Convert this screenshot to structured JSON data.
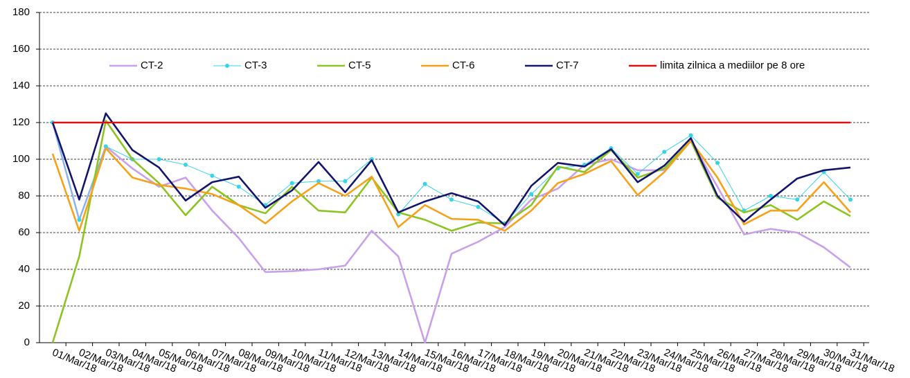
{
  "chart_data": {
    "type": "line",
    "categories": [
      "01/Mar/18",
      "02/Mar/18",
      "03/Mar/18",
      "04/Mar/18",
      "05/Mar/18",
      "06/Mar/18",
      "07/Mar/18",
      "08/Mar/18",
      "09/Mar/18",
      "10/Mar/18",
      "11/Mar/18",
      "12/Mar/18",
      "13/Mar/18",
      "14/Mar/18",
      "15/Mar/18",
      "16/Mar/18",
      "17/Mar/18",
      "18/Mar/18",
      "19/Mar/18",
      "20/Mar/18",
      "21/Mar/18",
      "22/Mar/18",
      "23/Mar/18",
      "24/Mar/18",
      "25/Mar/18",
      "26/Mar/18",
      "27/Mar/18",
      "28/Mar/18",
      "29/Mar/18",
      "30/Mar/18",
      "31/Mar/18"
    ],
    "series": [
      {
        "name": "CT-2",
        "color": "#c9a0ec",
        "marker": false,
        "values": [
          120,
          67,
          107,
          95,
          85,
          90,
          72,
          57,
          38.5,
          39,
          40,
          42,
          61,
          47,
          0,
          48.5,
          55,
          63,
          78,
          84,
          97,
          100,
          94,
          94,
          110,
          85,
          59,
          62,
          60,
          52,
          41
        ]
      },
      {
        "name": "CT-3",
        "color": "#33d6e8",
        "marker": true,
        "values": [
          120,
          67,
          107,
          100,
          100,
          97,
          91,
          85,
          75,
          87,
          88,
          88,
          100,
          70,
          86.5,
          78,
          74,
          65,
          81,
          95,
          97,
          106,
          92,
          104,
          113,
          98,
          72,
          80,
          78,
          93,
          78
        ]
      },
      {
        "name": "CT-5",
        "color": "#8cc421",
        "marker": false,
        "values": [
          0,
          47,
          121,
          100,
          87,
          69.5,
          85,
          75,
          70.5,
          85,
          72,
          71,
          90,
          71,
          67,
          61,
          65.5,
          65,
          75,
          96,
          93,
          105,
          90,
          95,
          110,
          79,
          71,
          75,
          67,
          77,
          69
        ]
      },
      {
        "name": "CT-6",
        "color": "#f7a11a",
        "marker": false,
        "values": [
          103,
          61,
          106,
          90,
          86,
          84,
          81,
          75,
          65,
          77,
          87,
          80,
          90.5,
          63,
          75,
          67.5,
          67,
          61,
          72,
          87,
          92,
          99,
          80.5,
          93,
          110,
          90,
          64.5,
          72,
          72,
          87.5,
          71
        ]
      },
      {
        "name": "CT-7",
        "color": "#13146b",
        "marker": false,
        "values": [
          120,
          78,
          125,
          105,
          95.5,
          77.5,
          87.5,
          90.5,
          73.5,
          83,
          98.5,
          82,
          99.5,
          71,
          77,
          81.5,
          77,
          64,
          85.5,
          98,
          96,
          105.5,
          87.5,
          96.5,
          111.5,
          80,
          66,
          78,
          89.5,
          94,
          95.5
        ]
      },
      {
        "name": "limita zilnica a mediilor pe 8 ore",
        "color": "#e01010",
        "marker": false,
        "values": [
          120,
          120,
          120,
          120,
          120,
          120,
          120,
          120,
          120,
          120,
          120,
          120,
          120,
          120,
          120,
          120,
          120,
          120,
          120,
          120,
          120,
          120,
          120,
          120,
          120,
          120,
          120,
          120,
          120,
          120,
          120
        ]
      }
    ],
    "ylim": [
      0,
      180
    ],
    "yticks": [
      0,
      20,
      40,
      60,
      80,
      100,
      120,
      140,
      160,
      180
    ],
    "grid": true,
    "legend": "top"
  }
}
